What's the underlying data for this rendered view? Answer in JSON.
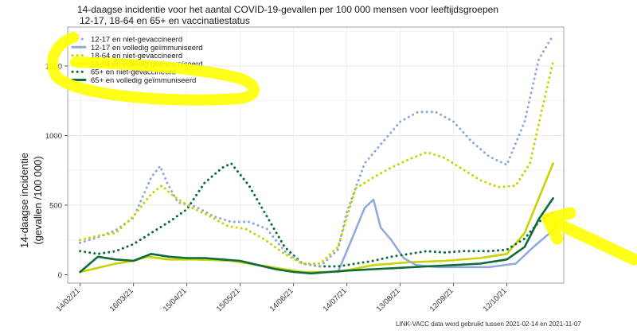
{
  "chart_data": {
    "type": "line",
    "title": "14-daagse incidentie voor het aantal COVID-19-gevallen per 100 000 mensen voor leeftijdsgroepen",
    "subtitle": "12-17, 18-64 en 65+ en vaccinatiestatus",
    "ylabel": [
      "14-daagse incidentie",
      "(gevallen /100 000)"
    ],
    "caption": "LINK-VACC data werd gebruikt tussen 2021-02-14 en  2021-11-07",
    "xlim": [
      "2021-02-14",
      "2021-11-07"
    ],
    "ylim": [
      -60,
      1780
    ],
    "yticks": [
      0,
      500,
      1000,
      1500
    ],
    "xticks": [
      {
        "date": "2021-02-14",
        "label": "14/02/21"
      },
      {
        "date": "2021-03-16",
        "label": "16/03/21"
      },
      {
        "date": "2021-04-15",
        "label": "15/04/21"
      },
      {
        "date": "2021-05-15",
        "label": "15/05/21"
      },
      {
        "date": "2021-06-14",
        "label": "14/06/21"
      },
      {
        "date": "2021-07-14",
        "label": "14/07/21"
      },
      {
        "date": "2021-08-13",
        "label": "13/08/21"
      },
      {
        "date": "2021-09-12",
        "label": "12/09/21"
      },
      {
        "date": "2021-10-12",
        "label": "12/10/21"
      }
    ],
    "grid": true,
    "legend_position": "top-left",
    "series": [
      {
        "name": "12-17 en niet-gevaccineerd",
        "color": "#8ea9db",
        "dashed": true,
        "points": [
          [
            "2021-02-14",
            230
          ],
          [
            "2021-02-24",
            270
          ],
          [
            "2021-03-06",
            320
          ],
          [
            "2021-03-16",
            410
          ],
          [
            "2021-03-26",
            700
          ],
          [
            "2021-03-31",
            780
          ],
          [
            "2021-04-04",
            660
          ],
          [
            "2021-04-10",
            520
          ],
          [
            "2021-04-20",
            490
          ],
          [
            "2021-04-30",
            420
          ],
          [
            "2021-05-10",
            380
          ],
          [
            "2021-05-20",
            380
          ],
          [
            "2021-05-30",
            330
          ],
          [
            "2021-06-09",
            170
          ],
          [
            "2021-06-19",
            80
          ],
          [
            "2021-06-29",
            60
          ],
          [
            "2021-07-09",
            180
          ],
          [
            "2021-07-14",
            450
          ],
          [
            "2021-07-24",
            800
          ],
          [
            "2021-08-03",
            950
          ],
          [
            "2021-08-13",
            1100
          ],
          [
            "2021-08-23",
            1170
          ],
          [
            "2021-09-02",
            1170
          ],
          [
            "2021-09-12",
            1100
          ],
          [
            "2021-09-22",
            960
          ],
          [
            "2021-10-02",
            850
          ],
          [
            "2021-10-12",
            790
          ],
          [
            "2021-10-22",
            1100
          ],
          [
            "2021-10-30",
            1550
          ],
          [
            "2021-11-07",
            1720
          ]
        ]
      },
      {
        "name": "12-17 en volledig geïmmuniseerd",
        "color": "#8ea9db",
        "dashed": false,
        "points": [
          [
            "2021-07-09",
            20
          ],
          [
            "2021-07-16",
            230
          ],
          [
            "2021-07-24",
            480
          ],
          [
            "2021-07-29",
            540
          ],
          [
            "2021-08-02",
            340
          ],
          [
            "2021-08-08",
            250
          ],
          [
            "2021-08-15",
            120
          ],
          [
            "2021-08-22",
            70
          ],
          [
            "2021-09-02",
            55
          ],
          [
            "2021-09-17",
            55
          ],
          [
            "2021-10-02",
            55
          ],
          [
            "2021-10-17",
            80
          ],
          [
            "2021-10-27",
            200
          ],
          [
            "2021-11-07",
            320
          ]
        ]
      },
      {
        "name": "18-64 en niet-gevaccineerd",
        "color": "#c8d400",
        "dashed": true,
        "points": [
          [
            "2021-02-14",
            250
          ],
          [
            "2021-02-24",
            280
          ],
          [
            "2021-03-06",
            300
          ],
          [
            "2021-03-16",
            420
          ],
          [
            "2021-03-26",
            580
          ],
          [
            "2021-04-01",
            640
          ],
          [
            "2021-04-08",
            560
          ],
          [
            "2021-04-18",
            480
          ],
          [
            "2021-04-28",
            420
          ],
          [
            "2021-05-08",
            350
          ],
          [
            "2021-05-18",
            330
          ],
          [
            "2021-05-28",
            260
          ],
          [
            "2021-06-09",
            150
          ],
          [
            "2021-06-19",
            80
          ],
          [
            "2021-06-29",
            80
          ],
          [
            "2021-07-09",
            200
          ],
          [
            "2021-07-19",
            620
          ],
          [
            "2021-07-29",
            700
          ],
          [
            "2021-08-08",
            770
          ],
          [
            "2021-08-18",
            830
          ],
          [
            "2021-08-28",
            880
          ],
          [
            "2021-09-07",
            840
          ],
          [
            "2021-09-17",
            760
          ],
          [
            "2021-09-27",
            680
          ],
          [
            "2021-10-07",
            630
          ],
          [
            "2021-10-17",
            640
          ],
          [
            "2021-10-25",
            800
          ],
          [
            "2021-11-01",
            1200
          ],
          [
            "2021-11-07",
            1530
          ]
        ]
      },
      {
        "name": "18-64 en volledig geïmmuniseerd",
        "color": "#c8d400",
        "dashed": false,
        "points": [
          [
            "2021-02-14",
            20
          ],
          [
            "2021-02-24",
            50
          ],
          [
            "2021-03-06",
            80
          ],
          [
            "2021-03-16",
            100
          ],
          [
            "2021-03-24",
            130
          ],
          [
            "2021-04-05",
            110
          ],
          [
            "2021-04-20",
            110
          ],
          [
            "2021-05-10",
            100
          ],
          [
            "2021-05-30",
            60
          ],
          [
            "2021-06-19",
            20
          ],
          [
            "2021-07-09",
            20
          ],
          [
            "2021-07-29",
            70
          ],
          [
            "2021-08-18",
            90
          ],
          [
            "2021-09-07",
            100
          ],
          [
            "2021-09-27",
            120
          ],
          [
            "2021-10-12",
            150
          ],
          [
            "2021-10-22",
            300
          ],
          [
            "2021-10-30",
            550
          ],
          [
            "2021-11-07",
            800
          ]
        ]
      },
      {
        "name": "65+ en niet-gevaccineerd",
        "color": "#0b6b3a",
        "dashed": true,
        "points": [
          [
            "2021-02-14",
            170
          ],
          [
            "2021-02-24",
            150
          ],
          [
            "2021-03-06",
            170
          ],
          [
            "2021-03-16",
            220
          ],
          [
            "2021-03-26",
            300
          ],
          [
            "2021-04-05",
            380
          ],
          [
            "2021-04-15",
            470
          ],
          [
            "2021-04-25",
            660
          ],
          [
            "2021-05-05",
            770
          ],
          [
            "2021-05-10",
            800
          ],
          [
            "2021-05-20",
            640
          ],
          [
            "2021-05-30",
            420
          ],
          [
            "2021-06-09",
            200
          ],
          [
            "2021-06-19",
            80
          ],
          [
            "2021-06-29",
            60
          ],
          [
            "2021-07-09",
            60
          ],
          [
            "2021-07-19",
            80
          ],
          [
            "2021-07-29",
            100
          ],
          [
            "2021-08-08",
            130
          ],
          [
            "2021-08-18",
            150
          ],
          [
            "2021-08-28",
            170
          ],
          [
            "2021-09-07",
            160
          ],
          [
            "2021-09-17",
            170
          ],
          [
            "2021-10-02",
            170
          ],
          [
            "2021-10-12",
            180
          ],
          [
            "2021-10-22",
            260
          ],
          [
            "2021-10-30",
            380
          ],
          [
            "2021-11-07",
            450
          ]
        ]
      },
      {
        "name": "65+ en volledig geïmmuniseerd",
        "color": "#0b6b3a",
        "dashed": false,
        "points": [
          [
            "2021-02-14",
            20
          ],
          [
            "2021-02-24",
            130
          ],
          [
            "2021-03-06",
            110
          ],
          [
            "2021-03-16",
            100
          ],
          [
            "2021-03-26",
            150
          ],
          [
            "2021-04-05",
            130
          ],
          [
            "2021-04-15",
            120
          ],
          [
            "2021-04-25",
            120
          ],
          [
            "2021-05-05",
            110
          ],
          [
            "2021-05-15",
            100
          ],
          [
            "2021-05-25",
            70
          ],
          [
            "2021-06-04",
            40
          ],
          [
            "2021-06-14",
            20
          ],
          [
            "2021-06-24",
            10
          ],
          [
            "2021-07-04",
            20
          ],
          [
            "2021-07-14",
            30
          ],
          [
            "2021-07-29",
            40
          ],
          [
            "2021-08-13",
            50
          ],
          [
            "2021-08-28",
            60
          ],
          [
            "2021-09-12",
            70
          ],
          [
            "2021-09-27",
            80
          ],
          [
            "2021-10-12",
            110
          ],
          [
            "2021-10-22",
            200
          ],
          [
            "2021-10-30",
            400
          ],
          [
            "2021-11-07",
            550
          ]
        ]
      }
    ]
  },
  "highlights": {
    "color": "#ffff00"
  }
}
